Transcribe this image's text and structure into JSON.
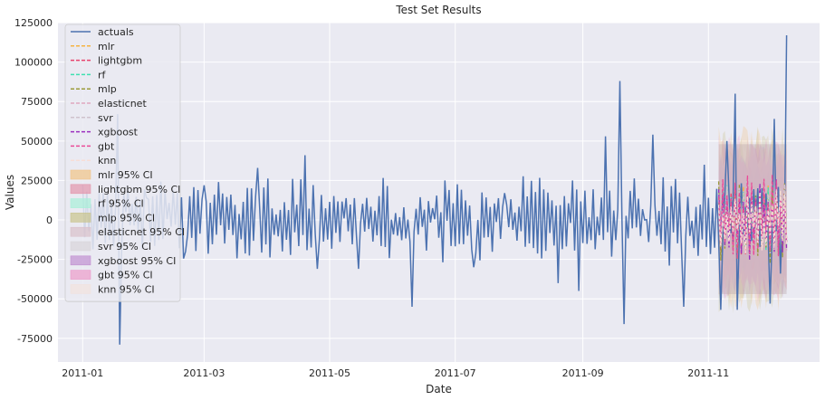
{
  "chart_data": {
    "type": "line",
    "title": "Test Set Results",
    "xlabel": "Date",
    "ylabel": "Values",
    "xlim": [
      "2010-12-20",
      "2011-12-25"
    ],
    "ylim": [
      -90000,
      125000
    ],
    "grid": true,
    "legend_position": "upper-left",
    "x_ticks": [
      "2011-01",
      "2011-03",
      "2011-05",
      "2011-07",
      "2011-09",
      "2011-11"
    ],
    "y_ticks": [
      -75000,
      -50000,
      -25000,
      0,
      25000,
      50000,
      75000,
      100000,
      125000
    ],
    "actuals": {
      "name": "actuals",
      "color": "#4c72b0",
      "start": "2011-01-01",
      "end": "2011-12-09",
      "points": [
        [
          "2011-01-05",
          10000
        ],
        [
          "2011-01-10",
          -5000
        ],
        [
          "2011-01-15",
          12000
        ],
        [
          "2011-01-18",
          67000
        ],
        [
          "2011-01-19",
          -79000
        ],
        [
          "2011-01-22",
          5000
        ],
        [
          "2011-02-01",
          14000
        ],
        [
          "2011-02-10",
          18000
        ],
        [
          "2011-02-20",
          -20000
        ],
        [
          "2011-03-01",
          22000
        ],
        [
          "2011-03-27",
          33000
        ],
        [
          "2011-04-19",
          41000
        ],
        [
          "2011-04-25",
          -31000
        ],
        [
          "2011-05-15",
          -31000
        ],
        [
          "2011-06-10",
          -55000
        ],
        [
          "2011-07-10",
          -30000
        ],
        [
          "2011-07-25",
          17000
        ],
        [
          "2011-08-20",
          -40000
        ],
        [
          "2011-08-30",
          -45000
        ],
        [
          "2011-09-12",
          53000
        ],
        [
          "2011-09-19",
          88000
        ],
        [
          "2011-09-21",
          -66000
        ],
        [
          "2011-10-05",
          54000
        ],
        [
          "2011-10-20",
          -55000
        ],
        [
          "2011-10-30",
          35000
        ],
        [
          "2011-11-07",
          -57000
        ],
        [
          "2011-11-10",
          50000
        ],
        [
          "2011-11-14",
          80000
        ],
        [
          "2011-11-15",
          -57000
        ],
        [
          "2011-12-01",
          -53000
        ],
        [
          "2011-12-03",
          64000
        ],
        [
          "2011-12-06",
          -34000
        ],
        [
          "2011-12-09",
          117000
        ]
      ]
    },
    "forecast_period": {
      "start": "2011-11-06",
      "end": "2011-12-09"
    },
    "series": [
      {
        "name": "mlr",
        "style": "dashed",
        "color": "#f5b342"
      },
      {
        "name": "lightgbm",
        "style": "dashed",
        "color": "#e8436e"
      },
      {
        "name": "rf",
        "style": "dashed",
        "color": "#3fe0b0"
      },
      {
        "name": "mlp",
        "style": "dashed",
        "color": "#9a9a3a"
      },
      {
        "name": "elasticnet",
        "style": "dashed",
        "color": "#e0a8bf"
      },
      {
        "name": "svr",
        "style": "dashed",
        "color": "#cfc2cc"
      },
      {
        "name": "xgboost",
        "style": "dashed",
        "color": "#9b2fbf"
      },
      {
        "name": "gbt",
        "style": "dashed",
        "color": "#ea4c98"
      },
      {
        "name": "knn",
        "style": "dashed",
        "color": "#f8ddd6"
      }
    ],
    "confidence_intervals": [
      {
        "name": "mlr 95% CI",
        "color": "#f1c487"
      },
      {
        "name": "lightgbm 95% CI",
        "color": "#e396ac"
      },
      {
        "name": "rf 95% CI",
        "color": "#a8f0d8"
      },
      {
        "name": "mlp 95% CI",
        "color": "#c9c48d"
      },
      {
        "name": "elasticnet 95% CI",
        "color": "#d9c0ca"
      },
      {
        "name": "svr 95% CI",
        "color": "#d9d4da"
      },
      {
        "name": "xgboost 95% CI",
        "color": "#c190d1"
      },
      {
        "name": "gbt 95% CI",
        "color": "#ec9ccb"
      },
      {
        "name": "knn 95% CI",
        "color": "#f2e2de"
      }
    ],
    "ci_band": {
      "lower": -47000,
      "upper": 48000
    }
  }
}
